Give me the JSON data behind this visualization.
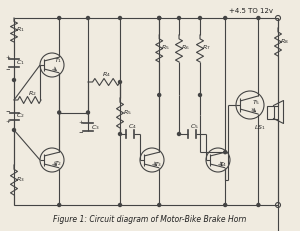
{
  "title": "Figure 1: Circuit diagram of Motor-Bike Brake Horn",
  "supply_label": "+4.5 TO 12v",
  "bg_color": "#f0ebe0",
  "line_color": "#444444",
  "text_color": "#222222",
  "figsize": [
    3.0,
    2.31
  ],
  "dpi": 100
}
